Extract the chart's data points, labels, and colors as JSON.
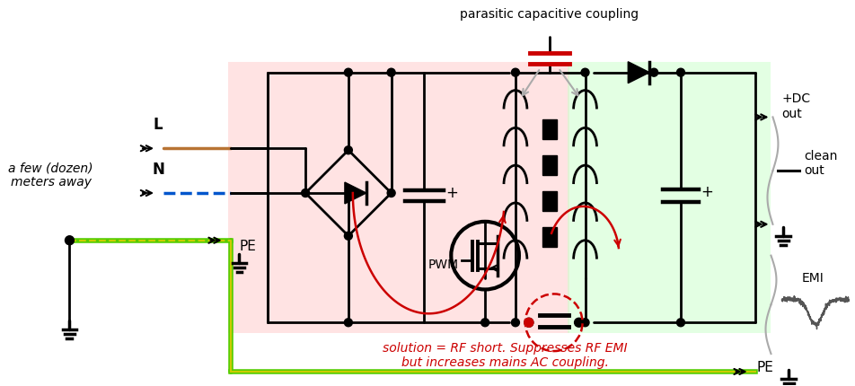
{
  "bg": "#ffffff",
  "pink": "#ffcccc",
  "green_bg": "#ccffcc",
  "black": "#000000",
  "orange": "#b87333",
  "blue": "#0055cc",
  "lime": "#55cc00",
  "yellow": "#cccc00",
  "red": "#cc0000",
  "gray": "#aaaaaa",
  "label_parasitic": "parasitic capacitive coupling",
  "label_solution": "solution = RF short. Suppresses RF EMI\nbut increases mains AC coupling.",
  "label_L": "L",
  "label_N": "N",
  "label_PE": "PE",
  "label_away": "a few (dozen)\nmeters away",
  "label_PWM": "PWM",
  "label_dc": "+DC\nout",
  "label_clean": "clean\nout",
  "label_emi": "EMI",
  "lw": 2.0
}
